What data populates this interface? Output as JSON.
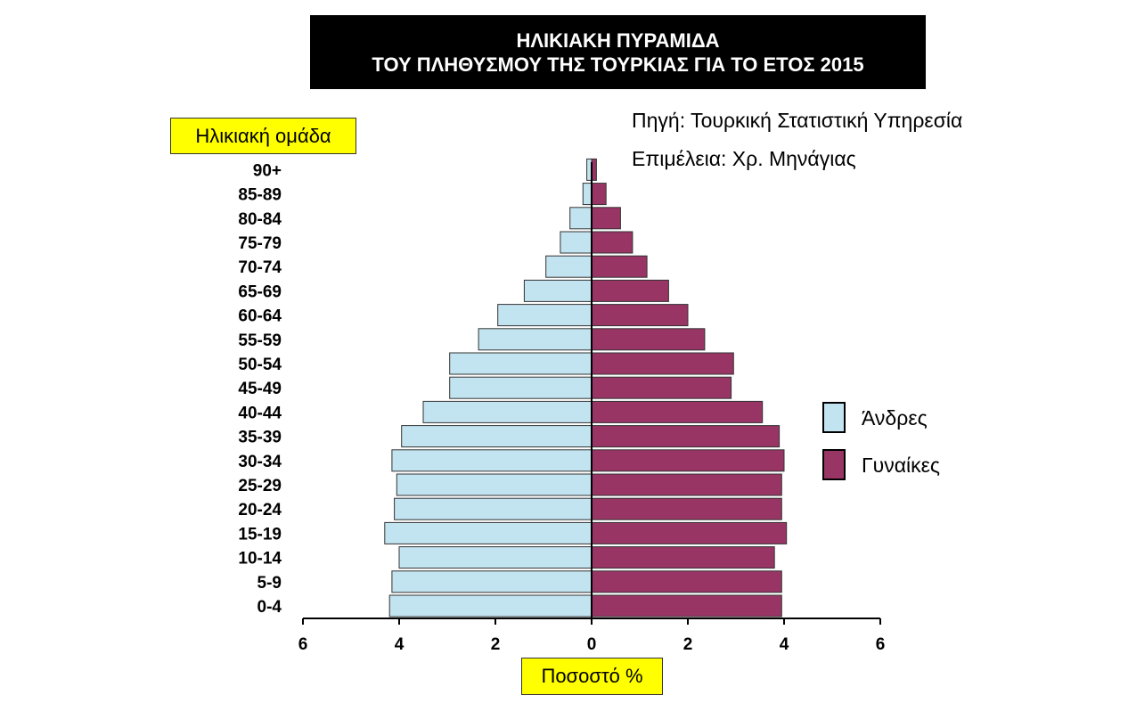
{
  "title": {
    "line1": "ΗΛΙΚΙΑΚΗ ΠΥΡΑΜΙΔΑ",
    "line2": "ΤΟΥ ΠΛΗΘΥΣΜΟΥ ΤΗΣ ΤΟΥΡΚΙΑΣ ΓΙΑ ΤΟ ΕΤΟΣ 2015"
  },
  "source": "Πηγή: Τουρκική Στατιστική Υπηρεσία",
  "editor": "Επιμέλεια: Χρ. Μηνάγιας",
  "chart_data": {
    "type": "bar",
    "orientation": "horizontal-population-pyramid",
    "ylabel": "Ηλικιακή ομάδα",
    "xlabel": "Ποσοστό %",
    "categories": [
      "0-4",
      "5-9",
      "10-14",
      "15-19",
      "20-24",
      "25-29",
      "30-34",
      "35-39",
      "40-44",
      "45-49",
      "50-54",
      "55-59",
      "60-64",
      "65-69",
      "70-74",
      "75-79",
      "80-84",
      "85-89",
      "90+"
    ],
    "series": [
      {
        "name": "Άνδρες",
        "side": "left",
        "color": "#c2e3f0",
        "values": [
          4.2,
          4.15,
          4.0,
          4.3,
          4.1,
          4.05,
          4.15,
          3.95,
          3.5,
          2.95,
          2.95,
          2.35,
          1.95,
          1.4,
          0.95,
          0.65,
          0.45,
          0.18,
          0.1
        ]
      },
      {
        "name": "Γυναίκες",
        "side": "right",
        "color": "#983565",
        "values": [
          3.95,
          3.95,
          3.8,
          4.05,
          3.95,
          3.95,
          4.0,
          3.9,
          3.55,
          2.9,
          2.95,
          2.35,
          2.0,
          1.6,
          1.15,
          0.85,
          0.6,
          0.3,
          0.1
        ]
      }
    ],
    "xticks": [
      6,
      4,
      2,
      0,
      2,
      4,
      6
    ],
    "xlim": [
      -6,
      6
    ],
    "legend_position": "right"
  }
}
